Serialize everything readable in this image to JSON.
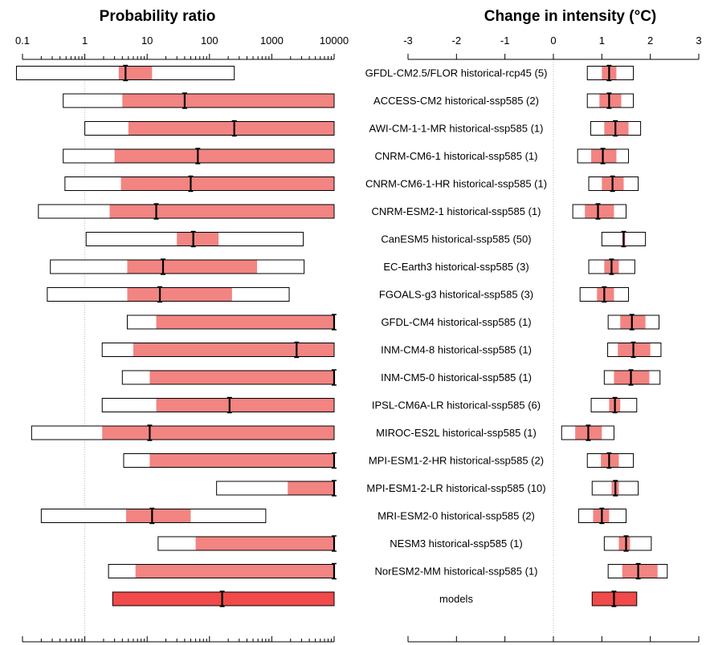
{
  "colors": {
    "uncertainty_fill": "#F28482",
    "synthesis_fill": "#F04A4A",
    "box_outline": "#000000",
    "one_line": "#BBBBBB"
  },
  "chart_data": [
    {
      "type": "interval",
      "title": "Probability ratio",
      "scale": "log",
      "xlim": [
        0.1,
        10000
      ],
      "xticks": [
        0.1,
        1,
        10,
        100,
        1000,
        10000
      ],
      "xtick_labels": [
        "0.1",
        "1",
        "10",
        "100",
        "1000",
        "10000"
      ],
      "reference_line": 1,
      "rows": [
        {
          "model": "GFDL-CM2.5/FLOR historical-rcp45 (5)",
          "outer": [
            0.08,
            250
          ],
          "inner": [
            3.5,
            12
          ],
          "best": 4.5
        },
        {
          "model": "ACCESS-CM2 historical-ssp585 (2)",
          "outer": [
            0.45,
            10000
          ],
          "inner": [
            4,
            10000
          ],
          "best": 40
        },
        {
          "model": "AWI-CM-1-1-MR historical-ssp585 (1)",
          "outer": [
            1,
            10000
          ],
          "inner": [
            5,
            10000
          ],
          "best": 250
        },
        {
          "model": "CNRM-CM6-1 historical-ssp585 (1)",
          "outer": [
            0.45,
            10000
          ],
          "inner": [
            3,
            10000
          ],
          "best": 65
        },
        {
          "model": "CNRM-CM6-1-HR historical-ssp585 (1)",
          "outer": [
            0.48,
            10000
          ],
          "inner": [
            3.8,
            10000
          ],
          "best": 50
        },
        {
          "model": "CNRM-ESM2-1 historical-ssp585 (1)",
          "outer": [
            0.18,
            10000
          ],
          "inner": [
            2.5,
            10000
          ],
          "best": 14
        },
        {
          "model": "CanESM5 historical-ssp585 (50)",
          "outer": [
            1.05,
            3200
          ],
          "inner": [
            30,
            140
          ],
          "best": 55
        },
        {
          "model": "EC-Earth3 historical-ssp585 (3)",
          "outer": [
            0.28,
            3300
          ],
          "inner": [
            4.8,
            580
          ],
          "best": 18
        },
        {
          "model": "FGOALS-g3 historical-ssp585 (3)",
          "outer": [
            0.25,
            1900
          ],
          "inner": [
            4.8,
            230
          ],
          "best": 16
        },
        {
          "model": "GFDL-CM4 historical-ssp585 (1)",
          "outer": [
            4.8,
            10000
          ],
          "inner": [
            14,
            10000
          ],
          "best": 10000
        },
        {
          "model": "INM-CM4-8 historical-ssp585 (1)",
          "outer": [
            1.9,
            10000
          ],
          "inner": [
            6,
            10000
          ],
          "best": 2500
        },
        {
          "model": "INM-CM5-0 historical-ssp585 (1)",
          "outer": [
            4,
            10000
          ],
          "inner": [
            11,
            10000
          ],
          "best": 10000
        },
        {
          "model": "IPSL-CM6A-LR historical-ssp585 (6)",
          "outer": [
            1.9,
            10000
          ],
          "inner": [
            14,
            10000
          ],
          "best": 210
        },
        {
          "model": "MIROC-ES2L historical-ssp585 (1)",
          "outer": [
            0.14,
            10000
          ],
          "inner": [
            1.9,
            10000
          ],
          "best": 11
        },
        {
          "model": "MPI-ESM1-2-HR historical-ssp585 (2)",
          "outer": [
            4.2,
            10000
          ],
          "inner": [
            11,
            10000
          ],
          "best": 10000
        },
        {
          "model": "MPI-ESM1-2-LR historical-ssp585 (10)",
          "outer": [
            130,
            10000
          ],
          "inner": [
            1800,
            10000
          ],
          "best": 10000
        },
        {
          "model": "MRI-ESM2-0 historical-ssp585 (2)",
          "outer": [
            0.2,
            800
          ],
          "inner": [
            4.6,
            50
          ],
          "best": 12
        },
        {
          "model": "NESM3 historical-ssp585 (1)",
          "outer": [
            15,
            10000
          ],
          "inner": [
            60,
            10000
          ],
          "best": 10000
        },
        {
          "model": "NorESM2-MM historical-ssp585 (1)",
          "outer": [
            2.4,
            10000
          ],
          "inner": [
            6.5,
            10000
          ],
          "best": 10000
        },
        {
          "model": "models",
          "outer": [
            2.8,
            10000
          ],
          "inner": [
            2.8,
            10000
          ],
          "best": 160,
          "synthesis": true
        }
      ]
    },
    {
      "type": "interval",
      "title": "Change in intensity (°C)",
      "scale": "linear",
      "xlim": [
        -3,
        3
      ],
      "xticks": [
        -3,
        -2,
        -1,
        0,
        1,
        2,
        3
      ],
      "xtick_labels": [
        "-3",
        "-2",
        "-1",
        "0",
        "1",
        "2",
        "3"
      ],
      "reference_line": 0,
      "rows": [
        {
          "model": "GFDL-CM2.5/FLOR historical-rcp45 (5)",
          "outer": [
            0.7,
            1.65
          ],
          "inner": [
            1.0,
            1.3
          ],
          "best": 1.15
        },
        {
          "model": "ACCESS-CM2 historical-ssp585 (2)",
          "outer": [
            0.7,
            1.65
          ],
          "inner": [
            0.95,
            1.4
          ],
          "best": 1.15
        },
        {
          "model": "AWI-CM-1-1-MR historical-ssp585 (1)",
          "outer": [
            0.77,
            1.8
          ],
          "inner": [
            1.05,
            1.55
          ],
          "best": 1.28
        },
        {
          "model": "CNRM-CM6-1 historical-ssp585 (1)",
          "outer": [
            0.5,
            1.55
          ],
          "inner": [
            0.78,
            1.3
          ],
          "best": 1.02
        },
        {
          "model": "CNRM-CM6-1-HR historical-ssp585 (1)",
          "outer": [
            0.73,
            1.75
          ],
          "inner": [
            1.0,
            1.45
          ],
          "best": 1.22
        },
        {
          "model": "CNRM-ESM2-1 historical-ssp585 (1)",
          "outer": [
            0.4,
            1.5
          ],
          "inner": [
            0.65,
            1.25
          ],
          "best": 0.92
        },
        {
          "model": "CanESM5 historical-ssp585 (50)",
          "outer": [
            1.0,
            1.9
          ],
          "inner": [
            1.42,
            1.48
          ],
          "best": 1.45
        },
        {
          "model": "EC-Earth3 historical-ssp585 (3)",
          "outer": [
            0.73,
            1.68
          ],
          "inner": [
            1.05,
            1.35
          ],
          "best": 1.2
        },
        {
          "model": "FGOALS-g3 historical-ssp585 (3)",
          "outer": [
            0.55,
            1.55
          ],
          "inner": [
            0.9,
            1.25
          ],
          "best": 1.05
        },
        {
          "model": "GFDL-CM4 historical-ssp585 (1)",
          "outer": [
            1.13,
            2.18
          ],
          "inner": [
            1.38,
            1.9
          ],
          "best": 1.62
        },
        {
          "model": "INM-CM4-8 historical-ssp585 (1)",
          "outer": [
            1.12,
            2.22
          ],
          "inner": [
            1.33,
            2.0
          ],
          "best": 1.65
        },
        {
          "model": "INM-CM5-0 historical-ssp585 (1)",
          "outer": [
            1.05,
            2.2
          ],
          "inner": [
            1.25,
            1.98
          ],
          "best": 1.6
        },
        {
          "model": "IPSL-CM6A-LR historical-ssp585 (6)",
          "outer": [
            0.78,
            1.72
          ],
          "inner": [
            1.15,
            1.38
          ],
          "best": 1.27
        },
        {
          "model": "MIROC-ES2L historical-ssp585 (1)",
          "outer": [
            0.17,
            1.25
          ],
          "inner": [
            0.45,
            1.0
          ],
          "best": 0.72
        },
        {
          "model": "MPI-ESM1-2-HR historical-ssp585 (2)",
          "outer": [
            0.7,
            1.65
          ],
          "inner": [
            0.98,
            1.35
          ],
          "best": 1.15
        },
        {
          "model": "MPI-ESM1-2-LR historical-ssp585 (10)",
          "outer": [
            0.8,
            1.75
          ],
          "inner": [
            1.2,
            1.35
          ],
          "best": 1.28
        },
        {
          "model": "MRI-ESM2-0 historical-ssp585 (2)",
          "outer": [
            0.52,
            1.5
          ],
          "inner": [
            0.82,
            1.15
          ],
          "best": 1.0
        },
        {
          "model": "NESM3 historical-ssp585 (1)",
          "outer": [
            1.05,
            2.02
          ],
          "inner": [
            1.35,
            1.58
          ],
          "best": 1.5
        },
        {
          "model": "NorESM2-MM historical-ssp585 (1)",
          "outer": [
            1.13,
            2.35
          ],
          "inner": [
            1.42,
            2.15
          ],
          "best": 1.75
        },
        {
          "model": "models",
          "outer": [
            0.8,
            1.72
          ],
          "inner": [
            0.8,
            1.72
          ],
          "best": 1.25,
          "synthesis": true
        }
      ]
    }
  ]
}
